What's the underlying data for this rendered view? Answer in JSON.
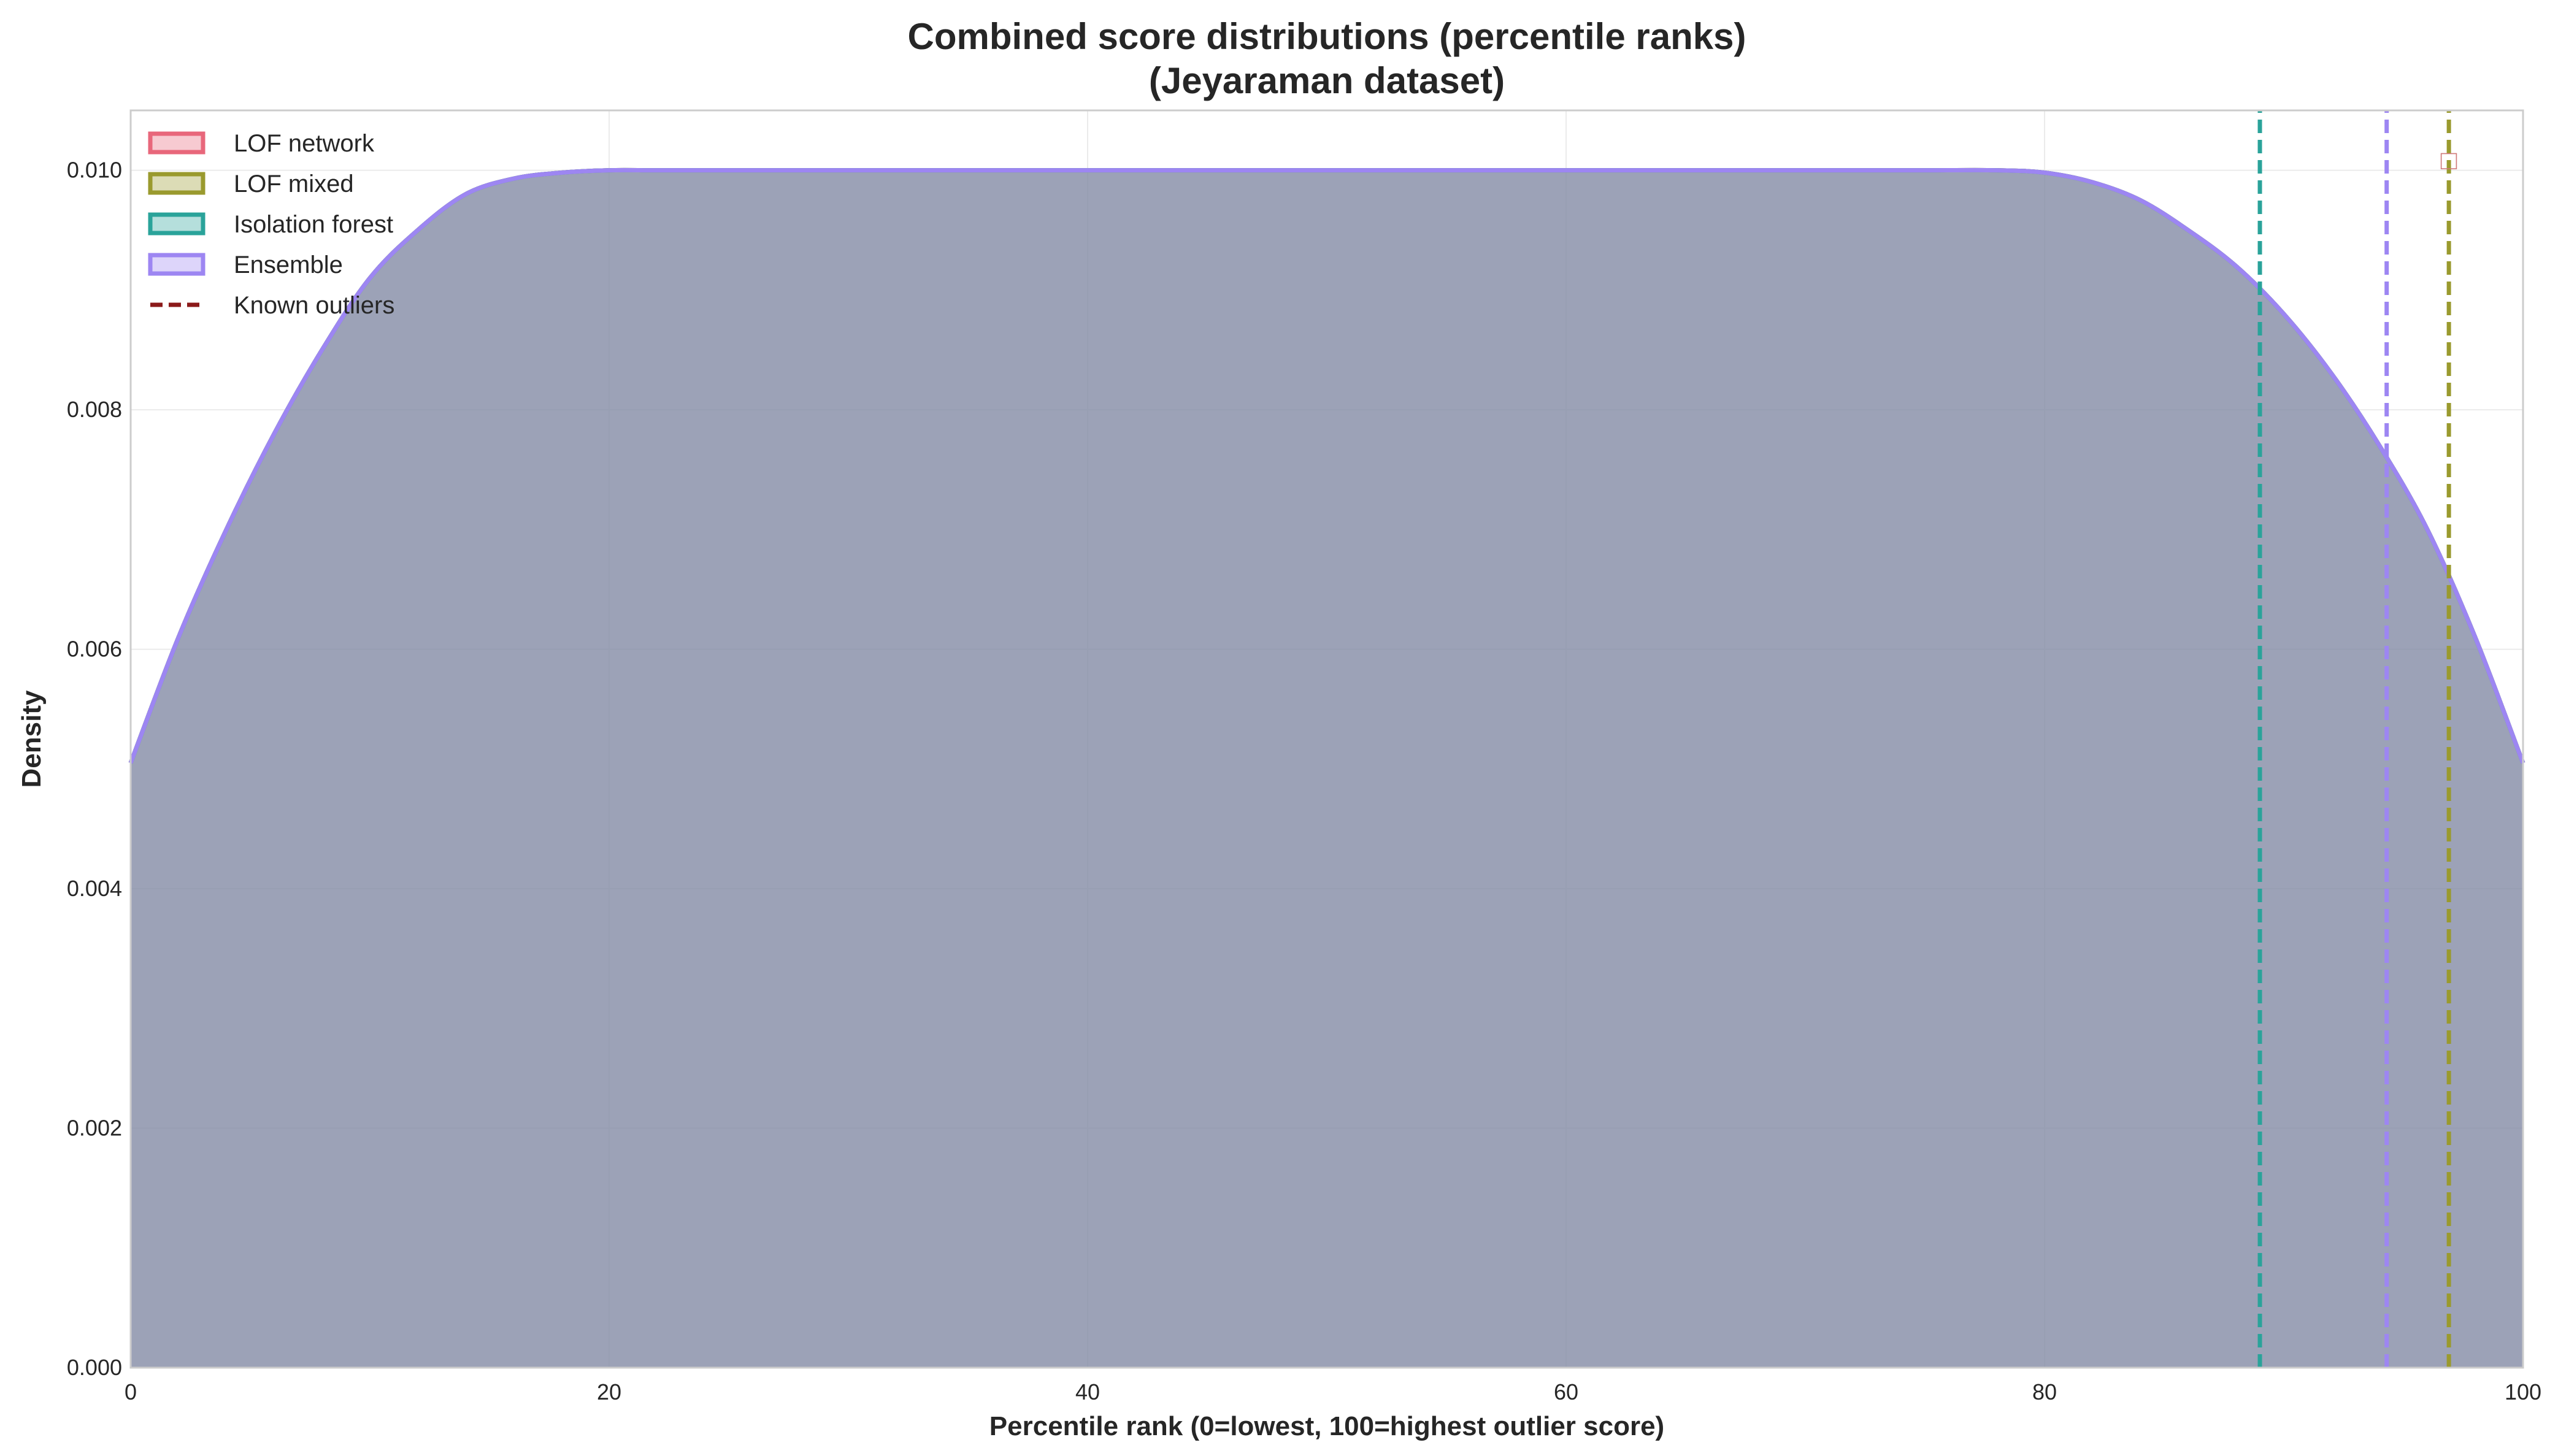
{
  "chart_data": {
    "type": "area",
    "title": "Combined score distributions (percentile ranks)",
    "subtitle": "(Jeyaraman dataset)",
    "xlabel": "Percentile rank (0=lowest, 100=highest outlier score)",
    "ylabel": "Density",
    "xlim": [
      0,
      100
    ],
    "ylim": [
      0,
      0.0105
    ],
    "xticks": [
      0,
      20,
      40,
      60,
      80,
      100
    ],
    "xtick_labels": [
      "0",
      "20",
      "40",
      "60",
      "80",
      "100"
    ],
    "yticks": [
      0,
      0.002,
      0.004,
      0.006,
      0.008,
      0.01
    ],
    "ytick_labels": [
      "0.000",
      "0.002",
      "0.004",
      "0.006",
      "0.008",
      "0.010"
    ],
    "grid": true,
    "legend_position": "top-left",
    "x": [
      0,
      2,
      4,
      6,
      8,
      10,
      12,
      14,
      16,
      18,
      20,
      22,
      25,
      30,
      40,
      50,
      60,
      70,
      75,
      78,
      80,
      82,
      84,
      86,
      88,
      90,
      92,
      94,
      96,
      98,
      100
    ],
    "series": [
      {
        "name": "LOF network",
        "color": "#e8677b",
        "y": [
          0.00505,
          0.0061,
          0.007,
          0.0078,
          0.0085,
          0.0091,
          0.0095,
          0.0098,
          0.00993,
          0.00998,
          0.01,
          0.01,
          0.01,
          0.01,
          0.01,
          0.01,
          0.01,
          0.01,
          0.01,
          0.01,
          0.00998,
          0.0099,
          0.00975,
          0.0095,
          0.0092,
          0.0088,
          0.0083,
          0.0077,
          0.007,
          0.0061,
          0.00505
        ]
      },
      {
        "name": "LOF mixed",
        "color": "#9a9a2e",
        "y": [
          0.00505,
          0.0061,
          0.007,
          0.0078,
          0.0085,
          0.0091,
          0.0095,
          0.0098,
          0.00993,
          0.00998,
          0.01,
          0.01,
          0.01,
          0.01,
          0.01,
          0.01,
          0.01,
          0.01,
          0.01,
          0.01,
          0.00998,
          0.0099,
          0.00975,
          0.0095,
          0.0092,
          0.0088,
          0.0083,
          0.0077,
          0.007,
          0.0061,
          0.00505
        ]
      },
      {
        "name": "Isolation forest",
        "color": "#2aa39a",
        "y": [
          0.00505,
          0.0061,
          0.007,
          0.0078,
          0.0085,
          0.0091,
          0.0095,
          0.0098,
          0.00993,
          0.00998,
          0.01,
          0.01,
          0.01,
          0.01,
          0.01,
          0.01,
          0.01,
          0.01,
          0.01,
          0.01,
          0.00998,
          0.0099,
          0.00975,
          0.0095,
          0.0092,
          0.0088,
          0.0083,
          0.0077,
          0.007,
          0.0061,
          0.00505
        ]
      },
      {
        "name": "Ensemble",
        "color": "#9d86f2",
        "y": [
          0.00505,
          0.0061,
          0.007,
          0.0078,
          0.0085,
          0.0091,
          0.0095,
          0.0098,
          0.00993,
          0.00998,
          0.01,
          0.01,
          0.01,
          0.01,
          0.01,
          0.01,
          0.01,
          0.01,
          0.01,
          0.01,
          0.00998,
          0.0099,
          0.00975,
          0.0095,
          0.0092,
          0.0088,
          0.0083,
          0.0077,
          0.007,
          0.0061,
          0.00505
        ]
      }
    ],
    "known_outliers": {
      "name": "Known outliers",
      "color": "#8b1a1a",
      "lines": [
        {
          "x": 89.0,
          "color": "#2aa39a",
          "y_top": 0.0105
        },
        {
          "x": 94.3,
          "color": "#9d86f2",
          "y_top": 0.0105
        },
        {
          "x": 96.9,
          "color": "#9a9a2e",
          "y_top": 0.0105
        }
      ]
    },
    "annotation": {
      "text": "□",
      "x": 96.9,
      "y": 0.0101
    }
  }
}
